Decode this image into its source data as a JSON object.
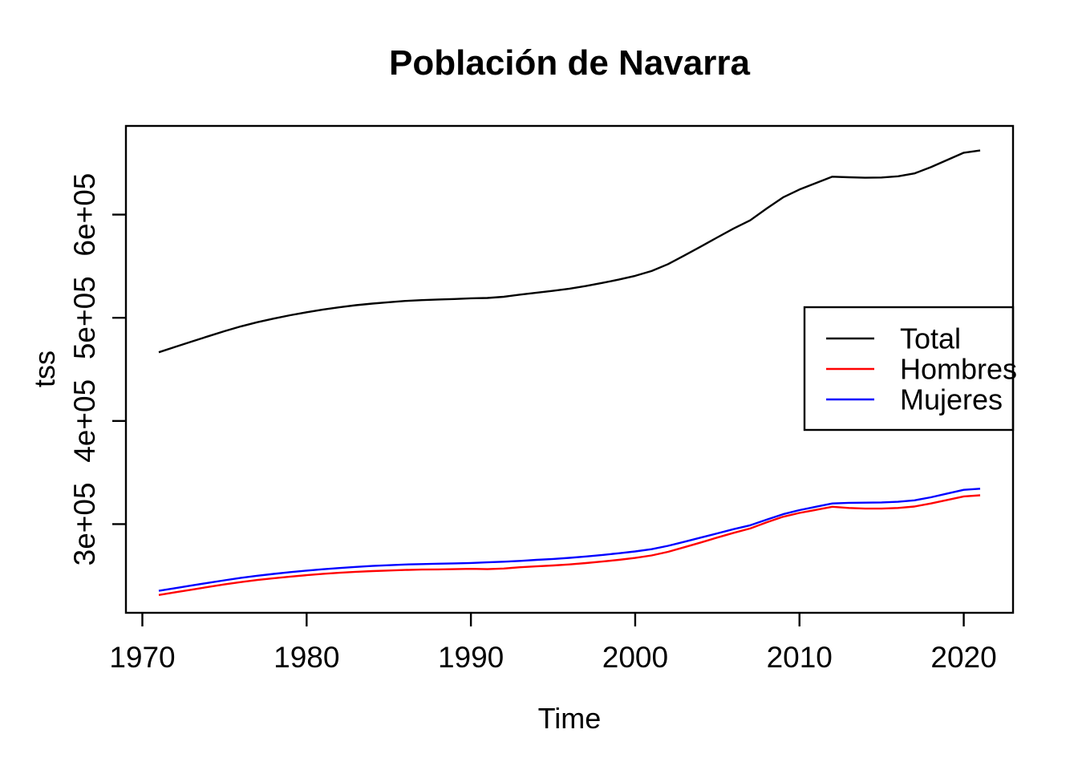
{
  "chart_data": {
    "type": "line",
    "title": "Población de Navarra",
    "xlabel": "Time",
    "ylabel": "tss",
    "grid": false,
    "legend_position": "right-center-inside",
    "xlim": [
      1969,
      2023
    ],
    "ylim": [
      214000,
      686000
    ],
    "xticks": [
      {
        "value": 1970,
        "label": "1970"
      },
      {
        "value": 1980,
        "label": "1980"
      },
      {
        "value": 1990,
        "label": "1990"
      },
      {
        "value": 2000,
        "label": "2000"
      },
      {
        "value": 2010,
        "label": "2010"
      },
      {
        "value": 2020,
        "label": "2020"
      }
    ],
    "yticks": [
      {
        "value": 300000,
        "label": "3e+05"
      },
      {
        "value": 400000,
        "label": "4e+05"
      },
      {
        "value": 500000,
        "label": "5e+05"
      },
      {
        "value": 600000,
        "label": "6e+05"
      }
    ],
    "x": [
      1971,
      1972,
      1973,
      1974,
      1975,
      1976,
      1977,
      1978,
      1979,
      1980,
      1981,
      1982,
      1983,
      1984,
      1985,
      1986,
      1987,
      1988,
      1989,
      1990,
      1991,
      1992,
      1993,
      1994,
      1995,
      1996,
      1997,
      1998,
      1999,
      2000,
      2001,
      2002,
      2003,
      2004,
      2005,
      2006,
      2007,
      2008,
      2009,
      2010,
      2011,
      2012,
      2013,
      2014,
      2015,
      2016,
      2017,
      2018,
      2019,
      2020,
      2021
    ],
    "series": [
      {
        "name": "Total",
        "color": "#000000",
        "values": [
          466600,
          471800,
          476900,
          482000,
          487000,
          491700,
          495700,
          499200,
          502500,
          505400,
          508000,
          510200,
          512200,
          513800,
          515100,
          516300,
          517100,
          517700,
          518200,
          518900,
          519200,
          520400,
          522500,
          524300,
          526100,
          528200,
          530800,
          533800,
          537000,
          540700,
          545300,
          552000,
          560500,
          569100,
          577900,
          586600,
          594500,
          605900,
          616700,
          624300,
          630600,
          636800,
          636200,
          635800,
          636000,
          637200,
          640000,
          646000,
          653000,
          660000,
          662200
        ]
      },
      {
        "name": "Hombres",
        "color": "#FF0000",
        "values": [
          231300,
          233900,
          236400,
          239000,
          241500,
          243800,
          245800,
          247500,
          249100,
          250500,
          251800,
          252800,
          253700,
          254400,
          255000,
          255500,
          255900,
          256100,
          256300,
          256600,
          256300,
          256900,
          258200,
          259000,
          259900,
          260900,
          262200,
          263700,
          265300,
          267200,
          269600,
          273100,
          277600,
          282200,
          286900,
          291500,
          295700,
          301600,
          307100,
          310800,
          313800,
          316800,
          315600,
          315000,
          315000,
          315600,
          317000,
          320000,
          323400,
          326800,
          327900
        ]
      },
      {
        "name": "Mujeres",
        "color": "#0000FF",
        "values": [
          235300,
          237900,
          240500,
          243000,
          245500,
          247900,
          249900,
          251700,
          253400,
          254900,
          256200,
          257400,
          258500,
          259400,
          260100,
          260800,
          261200,
          261600,
          261900,
          262300,
          262900,
          263500,
          264300,
          265300,
          266200,
          267300,
          268600,
          270100,
          271700,
          273500,
          275700,
          278900,
          282900,
          286900,
          291000,
          295100,
          298800,
          304300,
          309600,
          313500,
          316800,
          320000,
          320600,
          320800,
          321000,
          321600,
          323000,
          326000,
          329600,
          333200,
          334300
        ]
      }
    ]
  }
}
